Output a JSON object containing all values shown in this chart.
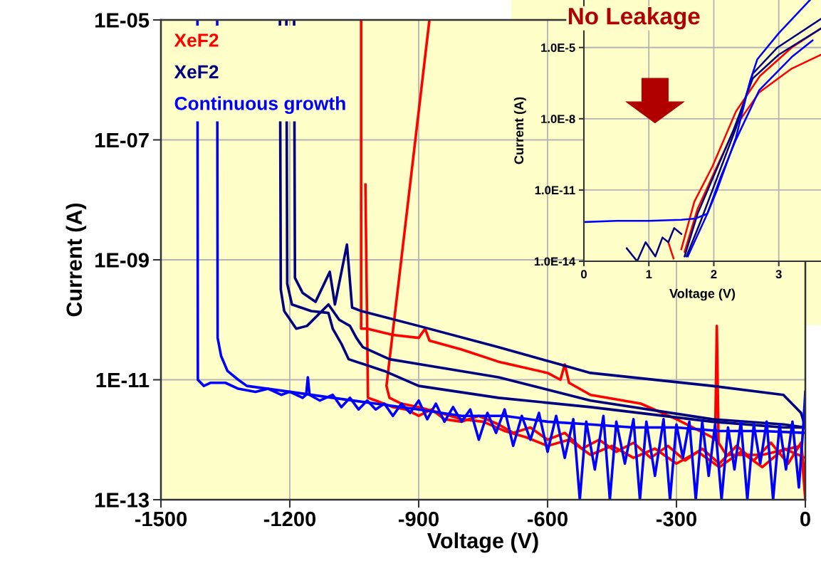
{
  "chart_data": [
    {
      "type": "line",
      "xlabel": "Voltage (V)",
      "ylabel": "Current (A)",
      "log": "y",
      "grid": true,
      "legend": "top left",
      "xlim": [
        -1500,
        0
      ],
      "ylim": [
        1e-13,
        1e-05
      ],
      "xticks": [
        -1500,
        -1200,
        -900,
        -600,
        -300,
        0
      ],
      "yticks": [
        {
          "value": 1e-13,
          "label": "1E-13"
        },
        {
          "value": 1e-11,
          "label": "1E-11"
        },
        {
          "value": 1e-09,
          "label": "1E-09"
        },
        {
          "value": 1e-07,
          "label": "1E-07"
        },
        {
          "value": 1e-05,
          "label": "1E-05"
        }
      ],
      "series": [
        {
          "name": "XeF2",
          "color": "#ff0000",
          "x": [
            -1034,
            -1034,
            -1020,
            -960,
            -900,
            -885,
            -875,
            -800,
            -714,
            -600,
            -570,
            -560,
            -550,
            -500,
            -383,
            -300,
            -217,
            -210,
            -206,
            -202,
            -184,
            -100,
            -10,
            0
          ],
          "values": [
            1e-05,
            7.1e-11,
            7.1e-11,
            5.6e-11,
            5e-11,
            7.1e-11,
            4.5e-11,
            3.2e-11,
            2e-11,
            1.3e-11,
            1e-11,
            1.8e-11,
            8.9e-12,
            5.6e-12,
            4e-12,
            2.2e-12,
            1.1e-12,
            1e-12,
            7.9e-11,
            8.9e-13,
            5.6e-13,
            5.6e-13,
            7.9e-13,
            1e-13
          ]
        },
        {
          "color": "#ff0000",
          "x": [
            -1024,
            -1018,
            -1000,
            -960,
            -930,
            -900,
            -870,
            -840,
            -800,
            -760,
            -714,
            -680,
            -640,
            -600,
            -560,
            -520,
            -480,
            -440,
            -400,
            -360,
            -320,
            -280,
            -240,
            -200,
            -160,
            -120,
            -80,
            -40,
            -10,
            0
          ],
          "values": [
            1.8e-08,
            5e-12,
            4.5e-12,
            3.5e-12,
            3.2e-12,
            2.5e-12,
            3.2e-12,
            2.2e-12,
            2e-12,
            2.5e-12,
            1.8e-12,
            1.3e-12,
            1.6e-12,
            1e-12,
            1.3e-12,
            7.1e-13,
            1e-12,
            6.3e-13,
            8.9e-13,
            5e-13,
            7.9e-13,
            4.5e-13,
            7.1e-13,
            4e-13,
            7.9e-13,
            4.5e-13,
            8.9e-13,
            4e-13,
            8.9e-13,
            2e-13
          ]
        },
        {
          "color": "#ff0000",
          "x": [
            -875,
            -975,
            -968,
            -940,
            -900,
            -850,
            -800,
            -750,
            -700,
            -650,
            -600,
            -550,
            -500,
            -450,
            -400,
            -350,
            -300,
            -250,
            -200,
            -150,
            -100,
            -50,
            0
          ],
          "values": [
            1e-05,
            7.9e-12,
            5e-12,
            4e-12,
            3.5e-12,
            2.8e-12,
            2.2e-12,
            2e-12,
            1.4e-12,
            1.1e-12,
            7.9e-13,
            1e-12,
            5.6e-13,
            7.9e-13,
            5e-13,
            7.1e-13,
            4e-13,
            6.3e-13,
            3.5e-13,
            6.3e-13,
            3.5e-13,
            7.1e-13,
            5e-13
          ]
        },
        {
          "name": "XeF2",
          "color": "#000080",
          "x": [
            -1190,
            -1188,
            -1170,
            -1140,
            -1107,
            -1095,
            -1067,
            -1055,
            -1034,
            -900,
            -714,
            -500,
            -217,
            -51,
            -10,
            0
          ],
          "values": [
            1e-05,
            5e-10,
            2.8e-10,
            2e-10,
            6.3e-10,
            1.8e-10,
            1.8e-09,
            1.6e-10,
            1.4e-10,
            7.9e-11,
            3.5e-11,
            1.3e-11,
            7.9e-12,
            5.6e-12,
            2.8e-12,
            1.6e-12
          ]
        },
        {
          "color": "#000080",
          "x": [
            -1223,
            -1221,
            -1213,
            -1185,
            -1160,
            -1130,
            -1110,
            -1085,
            -1060,
            -1045,
            -1030,
            -1000,
            -968,
            -714,
            -500,
            -217,
            -50,
            0
          ],
          "values": [
            1e-05,
            3.2e-10,
            1.4e-10,
            7.1e-11,
            7.9e-11,
            1.3e-10,
            1.8e-10,
            1e-10,
            7.9e-11,
            5e-11,
            3.5e-11,
            2.8e-11,
            2.2e-11,
            1.1e-11,
            4.5e-12,
            2.2e-12,
            1.8e-12,
            1.6e-12
          ]
        },
        {
          "color": "#000080",
          "x": [
            -1208,
            -1206,
            -1195,
            -1150,
            -1110,
            -1100,
            -1080,
            -1063,
            -980,
            -900,
            -714,
            -500,
            -217,
            -50,
            0
          ],
          "values": [
            1e-05,
            4e-10,
            1.8e-10,
            1.4e-10,
            1.3e-10,
            7.1e-11,
            4e-11,
            2.2e-11,
            1.4e-11,
            7.9e-12,
            5e-12,
            3.5e-12,
            2e-12,
            1.6e-12,
            1.6e-12
          ]
        },
        {
          "name": "Continuous growth",
          "color": "#0000ff",
          "x": [
            -1415,
            -1414,
            -1400,
            -1385,
            -1350,
            -1320,
            -1280,
            -1250,
            -1220,
            -1200,
            -1170,
            -1162,
            -1158,
            -1154,
            -1130,
            -1100,
            -1080,
            -1060,
            -1040,
            -1020,
            -1000,
            -980,
            -960,
            -940,
            -920,
            -900,
            -880,
            -860,
            -840,
            -820,
            -800,
            -780,
            -760,
            -740,
            -720,
            -700,
            -680,
            -660,
            -640,
            -620,
            -600,
            -580,
            -560,
            -540,
            -525,
            -510,
            -490,
            -470,
            -455,
            -440,
            -420,
            -400,
            -385,
            -370,
            -350,
            -330,
            -315,
            -300,
            -285,
            -270,
            -255,
            -240,
            -225,
            -210,
            -195,
            -180,
            -165,
            -150,
            -135,
            -120,
            -105,
            -90,
            -75,
            -60,
            -45,
            -30,
            -15,
            -5,
            0
          ],
          "values": [
            1e-05,
            1e-11,
            7.9e-12,
            8.9e-12,
            8.9e-12,
            7.1e-12,
            6.3e-12,
            7.1e-12,
            5.6e-12,
            6.3e-12,
            5e-12,
            5.6e-12,
            1.1e-11,
            5.6e-12,
            4.5e-12,
            5.6e-12,
            3.5e-12,
            5e-12,
            3.2e-12,
            4.5e-12,
            3.2e-12,
            4e-12,
            2.5e-12,
            4e-12,
            2.8e-12,
            4.5e-12,
            2.2e-12,
            4e-12,
            2e-12,
            3.5e-12,
            2e-12,
            3.2e-12,
            1e-12,
            2.8e-12,
            1.3e-12,
            3.2e-12,
            7.9e-13,
            2.5e-12,
            1e-12,
            2.8e-12,
            6.3e-13,
            2.5e-12,
            5e-13,
            2.2e-12,
            1e-13,
            2e-12,
            3.2e-13,
            2.5e-12,
            1e-13,
            2e-12,
            4e-13,
            2.2e-12,
            1e-13,
            2e-12,
            2.5e-13,
            2.2e-12,
            1e-13,
            1.8e-12,
            5e-13,
            2e-12,
            1e-13,
            2e-12,
            2.5e-13,
            1.8e-12,
            1e-13,
            1.6e-12,
            3.2e-13,
            2e-12,
            1e-13,
            1.8e-12,
            4e-13,
            2e-12,
            1e-13,
            1.8e-12,
            3.2e-13,
            2e-12,
            1.6e-13,
            1.6e-12,
            6.3e-12
          ]
        },
        {
          "color": "#0000ff",
          "x": [
            -1369,
            -1368,
            -1360,
            -1345,
            -1320,
            -1300,
            -1200,
            -1100,
            -1000,
            -900,
            -800,
            -700,
            -600,
            -500,
            -400,
            -300,
            -200,
            -100,
            0
          ],
          "values": [
            1e-05,
            5e-11,
            2.5e-11,
            1.4e-11,
            1e-11,
            7.9e-12,
            6.3e-12,
            5e-12,
            4e-12,
            3.2e-12,
            2.5e-12,
            2.5e-12,
            2e-12,
            1.8e-12,
            1.6e-12,
            1.6e-12,
            1.4e-12,
            1.4e-12,
            1.3e-12
          ]
        }
      ]
    },
    {
      "type": "line",
      "xlabel": "Voltage (V)",
      "ylabel": "Current (A)",
      "log": "y",
      "grid": true,
      "xlim": [
        0,
        3.65
      ],
      "ylim": [
        1e-14,
        0.001
      ],
      "xticks": [
        0,
        1,
        2,
        3
      ],
      "yticks": [
        {
          "value": 1e-14,
          "label": "1.0E-14"
        },
        {
          "value": 1e-11,
          "label": "1.0E-11"
        },
        {
          "value": 1e-08,
          "label": "1.0E-8"
        },
        {
          "value": 1e-05,
          "label": "1.0E-5"
        }
      ],
      "annotations": [
        "No Leakage"
      ],
      "series": [
        {
          "color": "#ff0000",
          "x": [
            1.5,
            1.7,
            1.98,
            2.34,
            2.71,
            3.2,
            3.65
          ],
          "values": [
            3.2e-14,
            3.2e-12,
            1e-10,
            2e-08,
            6.3e-07,
            1e-05,
            6.3e-05
          ]
        },
        {
          "color": "#ff0000",
          "x": [
            1.55,
            1.75,
            2.0,
            2.34,
            2.7,
            3.2,
            3.65
          ],
          "values": [
            2.5e-14,
            1.6e-12,
            5e-11,
            5e-09,
            1.3e-07,
            1.3e-06,
            5e-06
          ]
        },
        {
          "color": "#ff0000",
          "x": [
            1.3,
            1.38
          ],
          "values": [
            6.3e-14,
            1.3e-14
          ]
        },
        {
          "color": "#000080",
          "x": [
            0.66,
            0.82,
            0.95,
            1.1,
            1.21,
            1.3,
            1.39,
            1.5
          ],
          "values": [
            3.5e-14,
            1e-14,
            6.3e-14,
            1.6e-14,
            1e-13,
            6.3e-14,
            2.5e-13,
            1.4e-13
          ]
        },
        {
          "color": "#000080",
          "x": [
            1.58,
            1.8,
            1.98,
            2.34,
            2.6,
            2.98,
            3.65
          ],
          "values": [
            1.6e-14,
            5e-13,
            1e-11,
            4e-09,
            7.9e-07,
            1e-05,
            0.00016
          ]
        },
        {
          "color": "#000080",
          "x": [
            1.55,
            1.75,
            2.0,
            2.3,
            2.6,
            3.0,
            3.65
          ],
          "values": [
            1.6e-14,
            1e-12,
            4e-11,
            3.2e-09,
            5e-07,
            5e-06,
            6.3e-05
          ]
        },
        {
          "color": "#0000ff",
          "x": [
            0.02,
            0.5,
            1.0,
            1.5,
            1.72,
            1.9,
            2.05,
            2.34,
            2.56,
            2.67,
            3.0,
            3.48
          ],
          "values": [
            4.5e-13,
            5e-13,
            5e-13,
            5.6e-13,
            6.3e-13,
            1e-12,
            1e-11,
            1.6e-09,
            4e-07,
            3.2e-06,
            4e-05,
            0.001
          ]
        },
        {
          "color": "#0000ff",
          "x": [
            1.6,
            1.9,
            2.1,
            2.34,
            2.7,
            3.2,
            3.52
          ],
          "values": [
            1.6e-14,
            1e-12,
            3.2e-11,
            1.3e-09,
            1.6e-07,
            4e-06,
            2e-05
          ]
        }
      ]
    }
  ]
}
